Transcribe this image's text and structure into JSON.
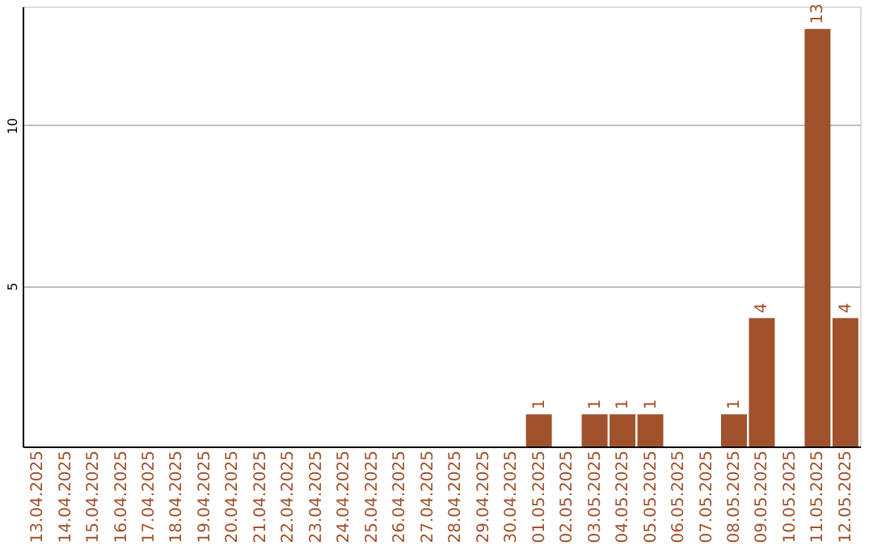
{
  "chart_data": {
    "type": "bar",
    "categories": [
      "13.04.2025",
      "14.04.2025",
      "15.04.2025",
      "16.04.2025",
      "17.04.2025",
      "18.04.2025",
      "19.04.2025",
      "20.04.2025",
      "21.04.2025",
      "22.04.2025",
      "23.04.2025",
      "24.04.2025",
      "25.04.2025",
      "26.04.2025",
      "27.04.2025",
      "28.04.2025",
      "29.04.2025",
      "30.04.2025",
      "01.05.2025",
      "02.05.2025",
      "03.05.2025",
      "04.05.2025",
      "05.05.2025",
      "06.05.2025",
      "07.05.2025",
      "08.05.2025",
      "09.05.2025",
      "10.05.2025",
      "11.05.2025",
      "12.05.2025"
    ],
    "values": [
      0,
      0,
      0,
      0,
      0,
      0,
      0,
      0,
      0,
      0,
      0,
      0,
      0,
      0,
      0,
      0,
      0,
      0,
      1,
      0,
      1,
      1,
      1,
      0,
      0,
      1,
      4,
      0,
      13,
      4
    ],
    "value_labels": [
      null,
      null,
      null,
      null,
      null,
      null,
      null,
      null,
      null,
      null,
      null,
      null,
      null,
      null,
      null,
      null,
      null,
      null,
      "1",
      null,
      "1",
      "1",
      "1",
      null,
      null,
      "1",
      "4",
      null,
      "13",
      "4"
    ],
    "color": "#a0522d",
    "ylim": [
      0,
      13.7
    ],
    "yticks": [
      5,
      10
    ],
    "grid": "y"
  }
}
